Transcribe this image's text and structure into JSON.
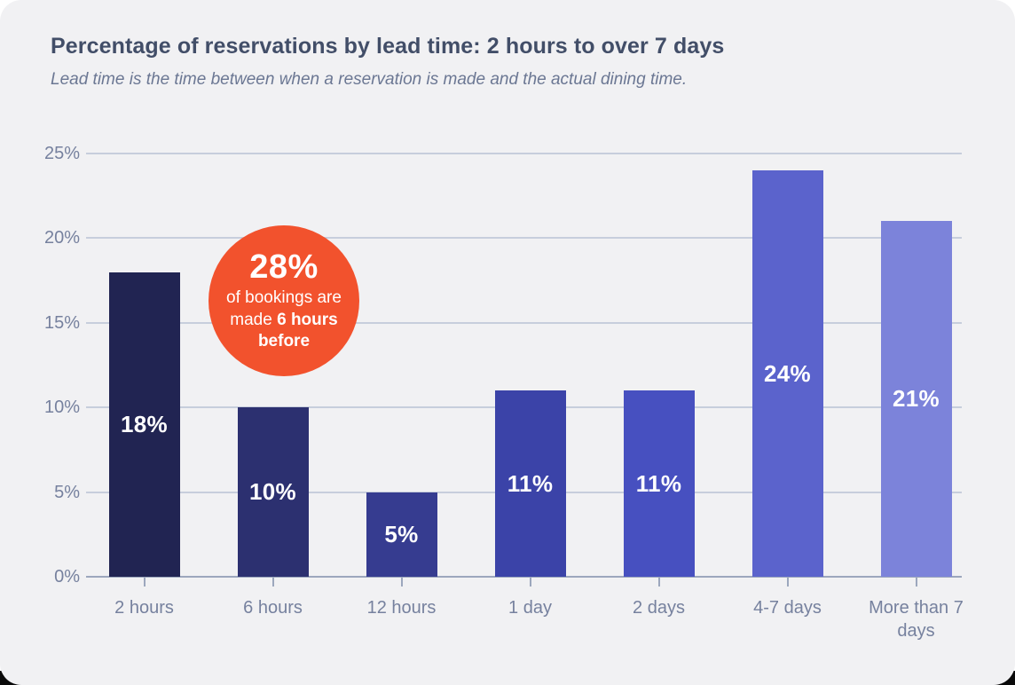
{
  "header": {
    "title": "Percentage of reservations by lead time: 2 hours to over 7 days",
    "subtitle": "Lead time is the time between when a reservation is made and the actual dining time."
  },
  "chart_data": {
    "type": "bar",
    "title": "Percentage of reservations by lead time: 2 hours to over 7 days",
    "subtitle": "Lead time is the time between when a reservation is made and the actual dining time.",
    "categories": [
      "2 hours",
      "6 hours",
      "12 hours",
      "1 day",
      "2 days",
      "4-7 days",
      "More than 7 days"
    ],
    "values": [
      18,
      10,
      5,
      11,
      11,
      24,
      21
    ],
    "value_labels": [
      "18%",
      "10%",
      "5%",
      "11%",
      "11%",
      "24%",
      "21%"
    ],
    "xlabel": "",
    "ylabel": "",
    "ylim": [
      0,
      25
    ],
    "y_tick_values": [
      0,
      5,
      10,
      15,
      20,
      25
    ],
    "y_tick_labels": [
      "0%",
      "5%",
      "10%",
      "15%",
      "20%",
      "25%"
    ],
    "grid": true,
    "legend": false,
    "bar_colors": [
      "#212452",
      "#2C3070",
      "#363C90",
      "#3B43A8",
      "#4750C0",
      "#5B63CC",
      "#7C83DA"
    ],
    "annotation": {
      "value": "28%",
      "text_regular": "of bookings are made ",
      "text_bold": "6 hours before",
      "bg_color": "#F2522D",
      "anchor_category": "6 hours"
    }
  },
  "colors": {
    "card_bg": "#F1F1F3",
    "title": "#424E68",
    "subtitle": "#6B7793",
    "axis_label": "#76819E",
    "gridline": "#C7CEDC",
    "axis_line": "#9CA7BD",
    "bar_label": "#FFFFFF",
    "annotation_bg": "#F2522D"
  }
}
